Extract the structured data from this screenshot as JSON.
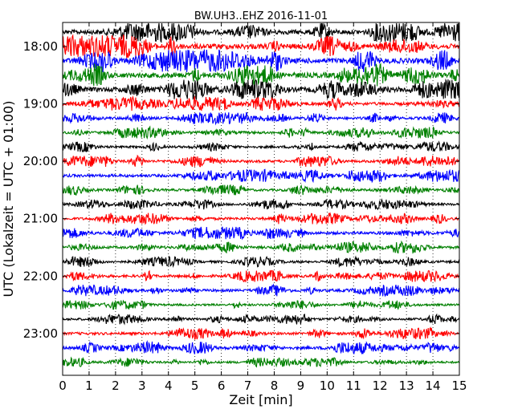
{
  "chart_data": {
    "type": "line",
    "title": "BW.UH3..EHZ 2016-11-01",
    "xlabel": "Zeit  [min]",
    "ylabel": "UTC (Lokalzeit = UTC + 01:00)",
    "xlim": [
      0,
      15
    ],
    "x_ticks": [
      "0",
      "1",
      "2",
      "3",
      "4",
      "5",
      "6",
      "7",
      "8",
      "9",
      "10",
      "11",
      "12",
      "13",
      "14",
      "15"
    ],
    "y_ticks": [
      "18:00",
      "19:00",
      "20:00",
      "21:00",
      "22:00",
      "23:00"
    ],
    "grid": "vertical dotted",
    "row_interval_min": 15,
    "colors": [
      "#000000",
      "#ff0000",
      "#0000ff",
      "#008000"
    ],
    "rows": [
      {
        "start": "17:45",
        "color": "#000000",
        "amplitude": 0.9
      },
      {
        "start": "18:00",
        "color": "#000000",
        "amplitude": 0.9
      },
      {
        "start": "18:15",
        "color": "#ff0000",
        "amplitude": 1.0
      },
      {
        "start": "18:30",
        "color": "#0000ff",
        "amplitude": 1.0
      },
      {
        "start": "18:45",
        "color": "#008000",
        "amplitude": 1.0
      },
      {
        "start": "19:00",
        "color": "#000000",
        "amplitude": 0.9
      },
      {
        "start": "19:15",
        "color": "#ff0000",
        "amplitude": 0.6
      },
      {
        "start": "19:30",
        "color": "#0000ff",
        "amplitude": 0.5
      },
      {
        "start": "19:45",
        "color": "#008000",
        "amplitude": 0.5
      },
      {
        "start": "20:00",
        "color": "#000000",
        "amplitude": 0.45
      },
      {
        "start": "20:15",
        "color": "#ff0000",
        "amplitude": 0.5
      },
      {
        "start": "20:30",
        "color": "#0000ff",
        "amplitude": 0.55
      },
      {
        "start": "20:45",
        "color": "#008000",
        "amplitude": 0.45
      },
      {
        "start": "21:00",
        "color": "#000000",
        "amplitude": 0.45
      },
      {
        "start": "21:15",
        "color": "#ff0000",
        "amplitude": 0.5
      },
      {
        "start": "21:30",
        "color": "#0000ff",
        "amplitude": 0.55
      },
      {
        "start": "21:45",
        "color": "#008000",
        "amplitude": 0.5
      },
      {
        "start": "22:00",
        "color": "#000000",
        "amplitude": 0.45
      },
      {
        "start": "22:15",
        "color": "#ff0000",
        "amplitude": 0.5
      },
      {
        "start": "22:30",
        "color": "#0000ff",
        "amplitude": 0.5
      },
      {
        "start": "22:45",
        "color": "#008000",
        "amplitude": 0.4
      },
      {
        "start": "23:00",
        "color": "#000000",
        "amplitude": 0.45
      },
      {
        "start": "23:15",
        "color": "#ff0000",
        "amplitude": 0.5
      },
      {
        "start": "23:30",
        "color": "#0000ff",
        "amplitude": 0.55
      },
      {
        "start": "23:45",
        "color": "#008000",
        "amplitude": 0.4
      }
    ]
  }
}
